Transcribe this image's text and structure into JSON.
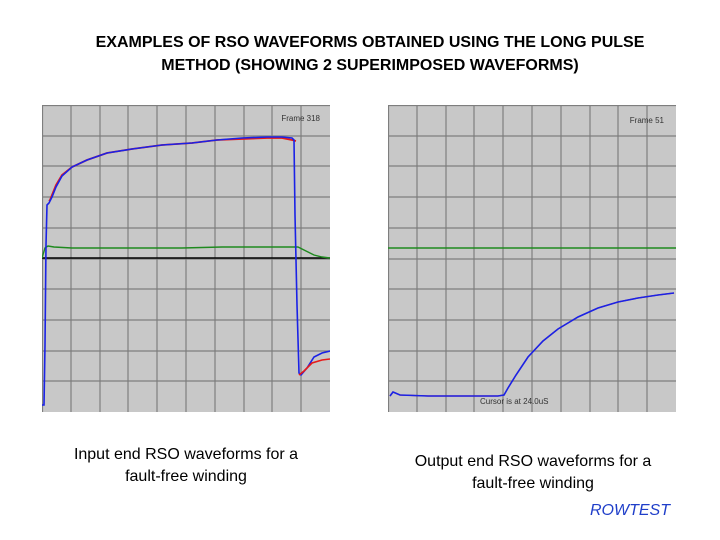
{
  "slide": {
    "title_line1": "EXAMPLES OF RSO WAVEFORMS OBTAINED USING THE LONG PULSE",
    "title_line2": "METHOD (SHOWING 2 SUPERIMPOSED WAVEFORMS)",
    "brand": "ROWTEST"
  },
  "left_scope": {
    "frame_label": "Frame 318",
    "caption_line1": "Input end RSO waveforms for a",
    "caption_line2": "fault-free winding"
  },
  "right_scope": {
    "frame_label": "Frame 51",
    "cursor_label": "Cursor is at 24.0uS",
    "caption_line1": "Output end RSO waveforms for a",
    "caption_line2": "fault-free winding"
  },
  "colors": {
    "screen": "#c8c8c8",
    "grid": "#7e7e7e",
    "trace_blue": "#1a22e6",
    "trace_red": "#e61a1a",
    "trace_green": "#1f8a1f",
    "brand": "#1f3ec9"
  }
}
